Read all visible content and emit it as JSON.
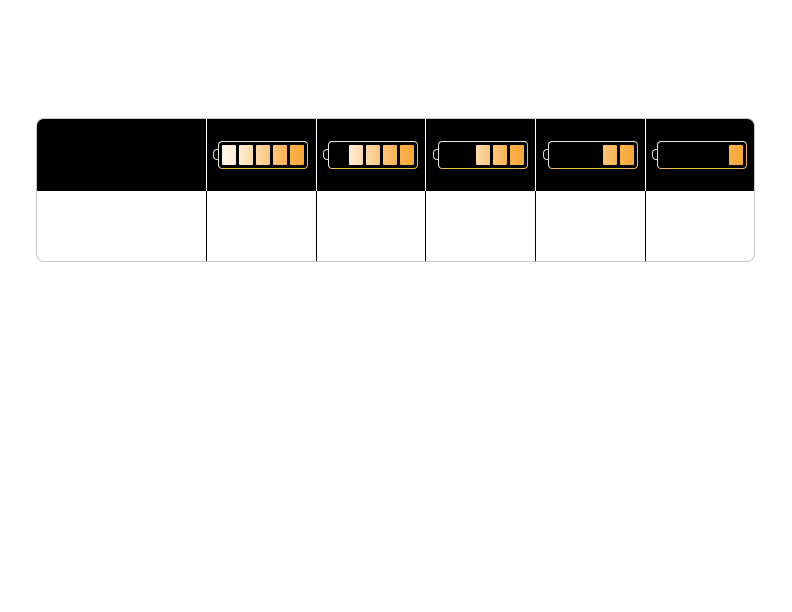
{
  "battery_table": {
    "segments_total": 5,
    "levels": [
      5,
      4,
      3,
      2,
      1
    ],
    "colors": {
      "header_bg": "#000000",
      "segment_light": "#fff6ea",
      "segment_dark": "#f8a636"
    }
  }
}
